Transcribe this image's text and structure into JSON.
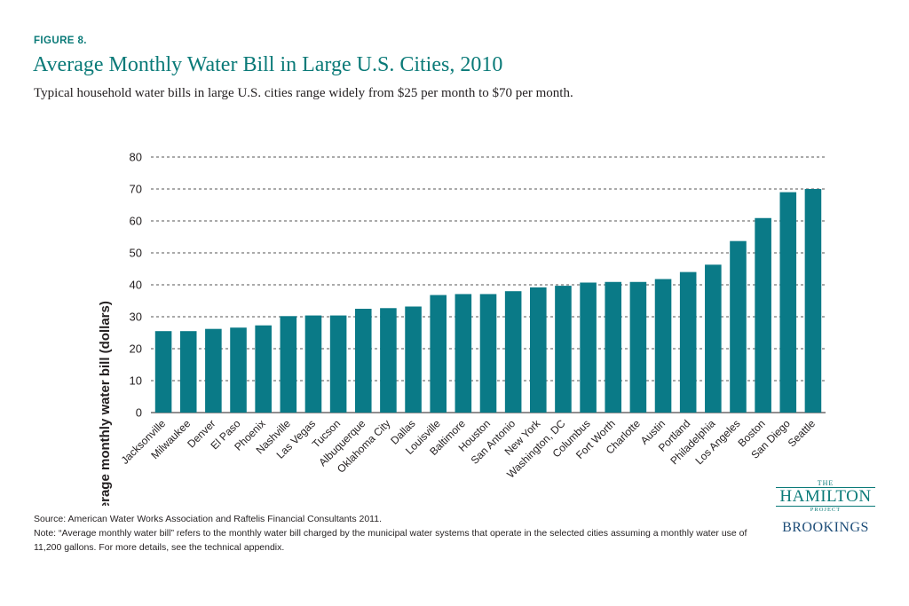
{
  "header": {
    "figure_label": "FIGURE 8.",
    "title": "Average Monthly Water Bill in Large U.S. Cities, 2010",
    "subtitle": "Typical household water bills in large U.S. cities range widely from $25 per month to $70 per month."
  },
  "chart_data": {
    "type": "bar",
    "title": "",
    "xlabel": "",
    "ylabel": "Average monthly water bill (dollars)",
    "ylim": [
      0,
      80
    ],
    "yticks": [
      0,
      10,
      20,
      30,
      40,
      50,
      60,
      70,
      80
    ],
    "grid": "horizontal dashed",
    "bar_color": "#0a7a87",
    "categories": [
      "Jacksonville",
      "Milwaukee",
      "Denver",
      "El Paso",
      "Phoenix",
      "Nashville",
      "Las Vegas",
      "Tucson",
      "Albuquerque",
      "Oklahoma City",
      "Dallas",
      "Louisville",
      "Baltimore",
      "Houston",
      "San Antonio",
      "New York",
      "Washington, DC",
      "Columbus",
      "Fort Worth",
      "Charlotte",
      "Austin",
      "Portland",
      "Philadelphia",
      "Los Angeles",
      "Boston",
      "San Diego",
      "Seattle"
    ],
    "values": [
      25.5,
      25.5,
      26.2,
      26.6,
      27.3,
      30.2,
      30.4,
      30.4,
      32.5,
      32.7,
      33.2,
      36.8,
      37.1,
      37.1,
      38.0,
      39.2,
      39.7,
      40.7,
      40.9,
      40.9,
      41.8,
      44.0,
      46.3,
      53.7,
      60.9,
      69.0,
      70.0
    ]
  },
  "footer": {
    "source": "Source: American Water Works Association and Raftelis Financial Consultants 2011.",
    "note": "Note: “Average monthly water bill” refers to the monthly water bill charged by the municipal water systems that operate in the selected cities assuming a monthly water use of 11,200 gallons. For more details, see the technical appendix."
  },
  "logo": {
    "the": "THE",
    "name": "HAMILTON",
    "project": "PROJECT",
    "brookings": "BROOKINGS"
  }
}
